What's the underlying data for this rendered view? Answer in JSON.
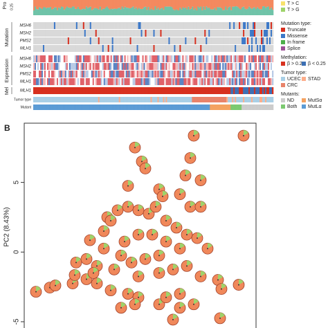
{
  "panel_a": {
    "prop_label": "Pro",
    "prop_tick": "0.25",
    "top_legend": [
      {
        "label": "T > C",
        "color": "#f7e26b"
      },
      {
        "label": "T > G",
        "color": "#9ed36a"
      }
    ],
    "row_groups": [
      {
        "label": "Mutation",
        "rows": [
          "MSH6",
          "MSH2",
          "PMS2",
          "MLH1"
        ]
      },
      {
        "label": "Expression",
        "rows": [
          "MSH6",
          "MSH2",
          "PMS2",
          "MLH1"
        ]
      },
      {
        "label": "Mel",
        "rows": [
          "MLH1"
        ]
      }
    ],
    "tracks": [
      "Tumor type",
      "Mutant"
    ],
    "legend": [
      {
        "title": "Mutation type:",
        "items": [
          {
            "label": "Truncate",
            "color": "#d7301f"
          },
          {
            "label": "Missense",
            "color": "#3c78c8"
          },
          {
            "label": "In frame",
            "color": "#4daf4a"
          },
          {
            "label": "Splice",
            "color": "#9b4f96"
          }
        ]
      },
      {
        "title": "Methylation:",
        "items": [
          {
            "label": "β > 0.25",
            "color": "#d7301f"
          },
          {
            "label": "β < 0.25",
            "color": "#3c6fb4"
          }
        ]
      },
      {
        "title": "Tumor type:",
        "items": [
          {
            "label": "UCEC",
            "color": "#a9cfe6"
          },
          {
            "label": "STAD",
            "color": "#fdae8b"
          },
          {
            "label": "CRC",
            "color": "#e8836a"
          }
        ]
      },
      {
        "title": "Mutants:",
        "items": [
          {
            "label": "ND",
            "color": "#cccccc"
          },
          {
            "label": "MutSα",
            "color": "#f4a261"
          },
          {
            "label": "Both",
            "color": "#7bc96f"
          },
          {
            "label": "MutLα",
            "color": "#5b9bd5"
          }
        ]
      }
    ]
  },
  "panel_b": {
    "label": "B"
  },
  "chart_data": {
    "type": "scatter",
    "ylabel": "PC2 (8.43%)",
    "xlim": [
      -8.4,
      8.35
    ],
    "ylim": [
      -5.45,
      9.25
    ],
    "yticks": [
      -5,
      0,
      5
    ],
    "color": "#f0885a",
    "x": [
      -7.55,
      -6.55,
      -6.15,
      -4.9,
      -4.75,
      -3.9,
      -3.15,
      -2.15,
      -0.9,
      -0.15,
      1.35,
      2.85,
      3.85,
      5.6,
      5.85,
      7.1,
      2.85,
      1.85,
      5.75,
      2.35,
      -0.4,
      -1.4,
      -4.65,
      -3.9,
      -3.15,
      -2.65,
      -3.65,
      -2.4,
      -2.15,
      -1.65,
      -0.9,
      -0.15,
      0.6,
      1.1,
      1.85,
      2.6,
      3.35,
      4.1,
      4.85,
      2.85,
      1.85,
      0.85,
      -0.15,
      -1.15,
      -1.4,
      -0.65,
      0.35,
      1.35,
      2.35,
      3.35,
      4.35,
      -0.15,
      -1.9,
      -0.9,
      1.35,
      1.6,
      2.85,
      4.35,
      3.6,
      4.35,
      -0.4,
      0.1,
      0.35,
      3.85,
      3.25,
      7.45,
      3.6,
      1.35,
      -2.65,
      -3.4
    ],
    "y": [
      -2.85,
      -2.55,
      -2.4,
      -2.25,
      -1.65,
      -1.95,
      -2.25,
      -2.75,
      -3,
      -3.25,
      -3.75,
      -4,
      -3.75,
      -2,
      -2.65,
      -2.35,
      -3,
      -3.25,
      -4.75,
      -4.85,
      -3.75,
      -4,
      -0.75,
      -0.5,
      -1,
      0.25,
      0.85,
      2.5,
      2.25,
      3,
      3.25,
      3,
      2.75,
      3.25,
      2.25,
      1.75,
      1.25,
      1,
      0.25,
      0.25,
      0.75,
      1.25,
      1.25,
      0.75,
      -0.25,
      -0.75,
      -0.5,
      -0.25,
      -1.25,
      -1,
      -1.75,
      -1.75,
      -1.25,
      4.75,
      4.5,
      4,
      4.15,
      5.15,
      3.25,
      3.25,
      7.5,
      6.5,
      6,
      8.35,
      5.5,
      8.35,
      6.75,
      -1.5,
      1.5,
      -1.5
    ]
  }
}
